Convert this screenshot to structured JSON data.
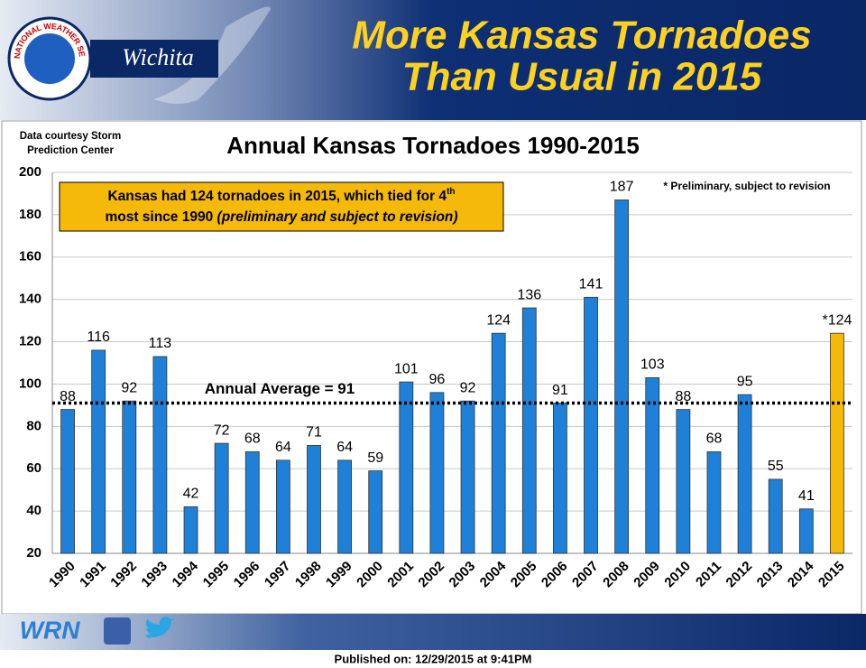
{
  "header": {
    "title_lines": [
      "More Kansas Tornadoes",
      "Than Usual in 2015"
    ],
    "office": "Wichita",
    "logo_ring": "NATIONAL WEATHER SERVICE"
  },
  "chart_data": {
    "type": "bar",
    "title": "Annual Kansas Tornadoes 1990-2015",
    "source_lines": [
      "Data courtesy Storm",
      "Prediction Center"
    ],
    "note": "* Preliminary, subject to revision",
    "annotation": {
      "line_1": "Kansas had 124 tornadoes in 2015, which tied for 4",
      "superscript": "th",
      "line_2": "most since 1990 ",
      "italic": "(preliminary and subject to revision)"
    },
    "average": {
      "value": 91,
      "label": "Annual Average = 91"
    },
    "categories": [
      "1990",
      "1991",
      "1992",
      "1993",
      "1994",
      "1995",
      "1996",
      "1997",
      "1998",
      "1999",
      "2000",
      "2001",
      "2002",
      "2003",
      "2004",
      "2005",
      "2006",
      "2007",
      "2008",
      "2009",
      "2010",
      "2011",
      "2012",
      "2013",
      "2014",
      "2015"
    ],
    "values": [
      88,
      116,
      92,
      113,
      42,
      72,
      68,
      64,
      71,
      64,
      59,
      101,
      96,
      92,
      124,
      136,
      91,
      141,
      187,
      103,
      88,
      68,
      95,
      55,
      41,
      124
    ],
    "value_labels": [
      "88",
      "116",
      "92",
      "113",
      "42",
      "72",
      "68",
      "64",
      "71",
      "64",
      "59",
      "101",
      "96",
      "92",
      "124",
      "136",
      "91",
      "141",
      "187",
      "103",
      "88",
      "68",
      "95",
      "55",
      "41",
      "*124"
    ],
    "colors": [
      "#1f80d8",
      "#1f80d8",
      "#1f80d8",
      "#1f80d8",
      "#1f80d8",
      "#1f80d8",
      "#1f80d8",
      "#1f80d8",
      "#1f80d8",
      "#1f80d8",
      "#1f80d8",
      "#1f80d8",
      "#1f80d8",
      "#1f80d8",
      "#1f80d8",
      "#1f80d8",
      "#1f80d8",
      "#1f80d8",
      "#1f80d8",
      "#1f80d8",
      "#1f80d8",
      "#1f80d8",
      "#1f80d8",
      "#1f80d8",
      "#1f80d8",
      "#f5b90a"
    ],
    "ylim": [
      20,
      200
    ],
    "yticks": [
      20,
      40,
      60,
      80,
      100,
      120,
      140,
      160,
      180,
      200
    ],
    "grid": true
  },
  "footer": {
    "logo": "WRN",
    "published": "Published on: 12/29/2015 at 9:41PM"
  }
}
